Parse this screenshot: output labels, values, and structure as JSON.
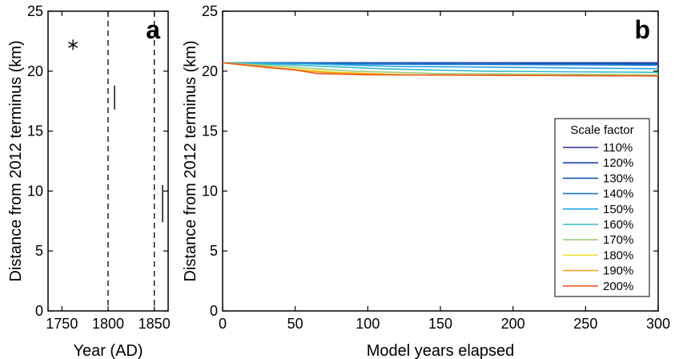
{
  "chart_data": [
    {
      "panel_label": "a",
      "type": "scatter",
      "xlabel": "Year (AD)",
      "ylabel": "Distance from 2012 terminus (km)",
      "xlim": [
        1735,
        1865
      ],
      "ylim": [
        0,
        25
      ],
      "xticks": [
        1750,
        1800,
        1850
      ],
      "yticks": [
        0,
        5,
        10,
        15,
        20,
        25
      ],
      "vlines": [
        1800,
        1850
      ],
      "points": [
        {
          "x": 1762,
          "y": 22.2
        }
      ],
      "ranges": [
        {
          "x": 1807,
          "y0": 16.8,
          "y1": 18.8
        },
        {
          "x": 1859,
          "y0": 7.4,
          "y1": 10.5
        }
      ]
    },
    {
      "panel_label": "b",
      "type": "line",
      "xlabel": "Model years elapsed",
      "ylabel": "Distance from 2012 terminus (km)",
      "xlim": [
        0,
        300
      ],
      "ylim": [
        0,
        25
      ],
      "xticks": [
        0,
        50,
        100,
        150,
        200,
        250,
        300
      ],
      "yticks": [
        0,
        5,
        10,
        15,
        20,
        25
      ],
      "legend_title": "Scale factor",
      "legend_position": "lower-right",
      "series": [
        {
          "name": "110%",
          "color": "#2c2f8c",
          "x": [
            0,
            300
          ],
          "y": [
            20.7,
            20.7
          ]
        },
        {
          "name": "120%",
          "color": "#1f3fa6",
          "x": [
            0,
            300
          ],
          "y": [
            20.7,
            20.7
          ]
        },
        {
          "name": "130%",
          "color": "#1556b8",
          "x": [
            0,
            100,
            300
          ],
          "y": [
            20.7,
            20.7,
            20.6
          ]
        },
        {
          "name": "140%",
          "color": "#1f78d0",
          "x": [
            0,
            80,
            300
          ],
          "y": [
            20.7,
            20.6,
            20.5
          ]
        },
        {
          "name": "150%",
          "color": "#27a6e3",
          "x": [
            0,
            60,
            120,
            300
          ],
          "y": [
            20.7,
            20.6,
            20.4,
            20.2
          ]
        },
        {
          "name": "160%",
          "color": "#36bcc8",
          "x": [
            0,
            50,
            110,
            180,
            300
          ],
          "y": [
            20.7,
            20.5,
            20.2,
            20.0,
            19.9
          ]
        },
        {
          "name": "170%",
          "color": "#9ccd7c",
          "x": [
            0,
            40,
            90,
            150,
            300
          ],
          "y": [
            20.7,
            20.4,
            20.0,
            19.8,
            19.7
          ]
        },
        {
          "name": "180%",
          "color": "#ece22c",
          "x": [
            0,
            35,
            80,
            130,
            300
          ],
          "y": [
            20.7,
            20.3,
            19.9,
            19.7,
            19.6
          ]
        },
        {
          "name": "190%",
          "color": "#f6a21d",
          "x": [
            0,
            30,
            70,
            120,
            300
          ],
          "y": [
            20.7,
            20.3,
            19.9,
            19.7,
            19.6
          ]
        },
        {
          "name": "200%",
          "color": "#ec5a23",
          "x": [
            0,
            25,
            50,
            65,
            100,
            300
          ],
          "y": [
            20.7,
            20.4,
            20.1,
            19.8,
            19.7,
            19.6
          ]
        }
      ]
    }
  ]
}
